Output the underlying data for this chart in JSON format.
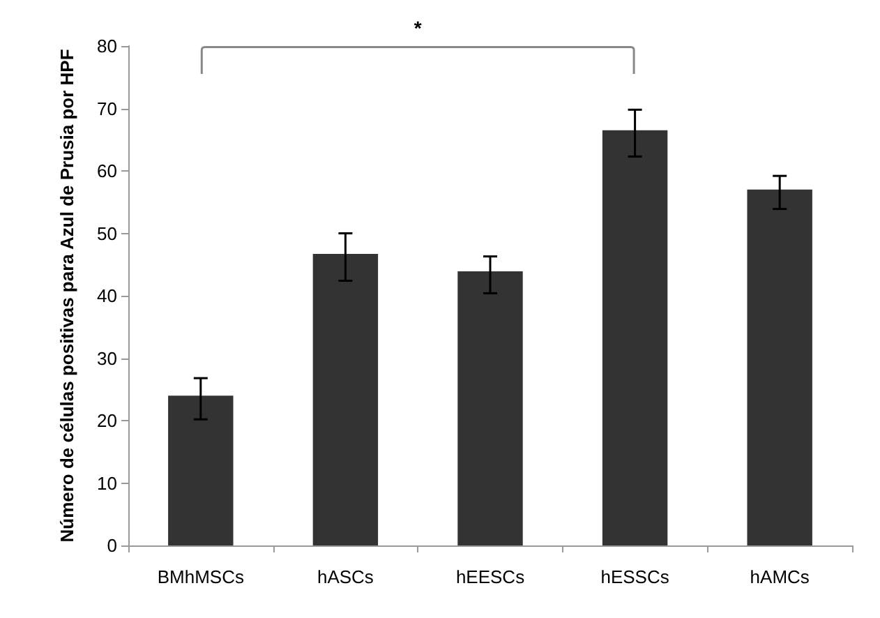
{
  "chart_data": {
    "type": "bar",
    "ylabel": "Número de células positivas para Azul de Prusia por HPF",
    "categories": [
      "BMhMSCs",
      "hASCs",
      "hEESCs",
      "hESSCs",
      "hAMCs"
    ],
    "values": [
      24,
      46.7,
      43.9,
      66.5,
      57
    ],
    "errors": [
      [
        20.2,
        26.8
      ],
      [
        42.4,
        50
      ],
      [
        40.4,
        46.3
      ],
      [
        62.3,
        69.8
      ],
      [
        53.9,
        59.2
      ]
    ],
    "color": "#333333",
    "ylim": [
      0,
      80
    ],
    "yticks": [
      0,
      10,
      20,
      30,
      40,
      50,
      60,
      70,
      80
    ],
    "grid": false,
    "annotations": [
      "*"
    ]
  }
}
